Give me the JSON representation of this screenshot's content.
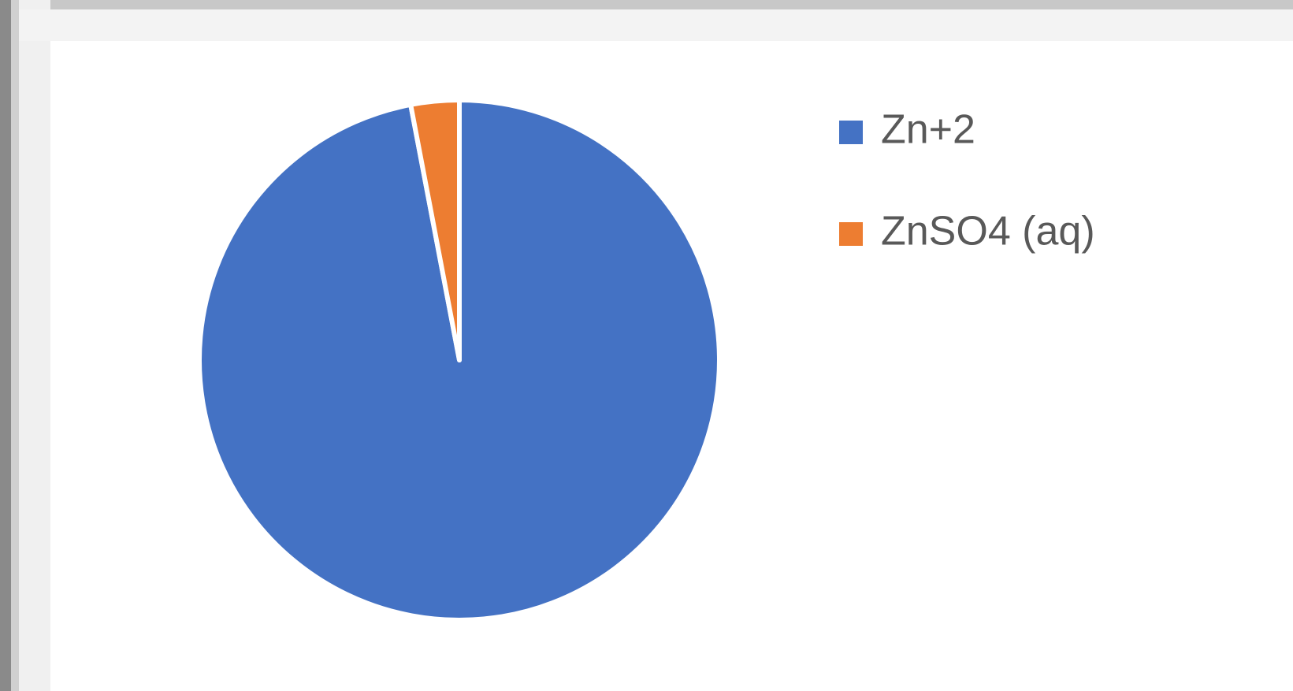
{
  "chart_data": {
    "type": "pie",
    "categories": [
      "Zn+2",
      "ZnSO4 (aq)"
    ],
    "values": [
      97,
      3
    ],
    "colors": [
      "#4472c4",
      "#ed7d31"
    ],
    "legend": "right"
  }
}
